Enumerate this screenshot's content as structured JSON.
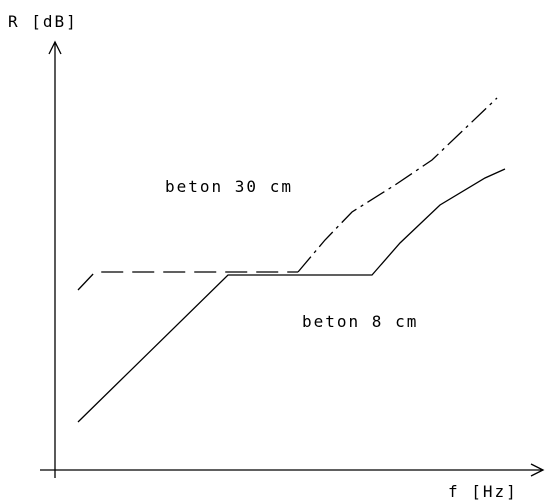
{
  "axes": {
    "y_label": "R [dB]",
    "x_label": "f [Hz]"
  },
  "curves": [
    {
      "label": "beton 30 cm"
    },
    {
      "label": "beton 8 cm"
    }
  ]
}
